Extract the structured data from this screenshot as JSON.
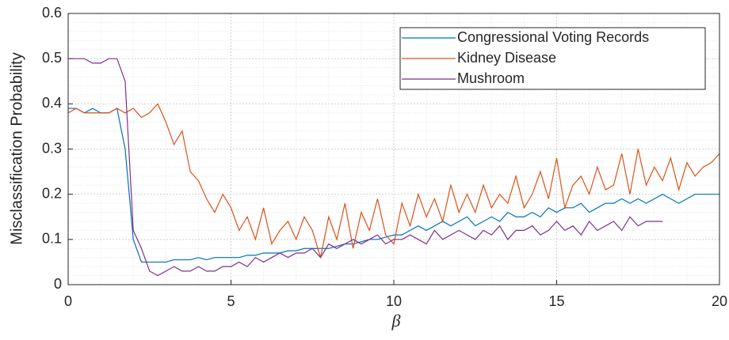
{
  "chart_data": {
    "type": "line",
    "x": [
      0,
      0.25,
      0.5,
      0.75,
      1,
      1.25,
      1.5,
      1.75,
      2,
      2.25,
      2.5,
      2.75,
      3,
      3.25,
      3.5,
      3.75,
      4,
      4.25,
      4.5,
      4.75,
      5,
      5.25,
      5.5,
      5.75,
      6,
      6.25,
      6.5,
      6.75,
      7,
      7.25,
      7.5,
      7.75,
      8,
      8.25,
      8.5,
      8.75,
      9,
      9.25,
      9.5,
      9.75,
      10,
      10.25,
      10.5,
      10.75,
      11,
      11.25,
      11.5,
      11.75,
      12,
      12.25,
      12.5,
      12.75,
      13,
      13.25,
      13.5,
      13.75,
      14,
      14.25,
      14.5,
      14.75,
      15,
      15.25,
      15.5,
      15.75,
      16,
      16.25,
      16.5,
      16.75,
      17,
      17.25,
      17.5,
      17.75,
      18,
      18.25,
      18.5,
      18.75,
      19,
      19.25,
      19.5,
      19.75,
      20
    ],
    "series": [
      {
        "name": "Congressional Voting Records",
        "color": "#0072bd",
        "values": [
          0.39,
          0.39,
          0.38,
          0.39,
          0.38,
          0.38,
          0.39,
          0.3,
          0.1,
          0.05,
          0.05,
          0.05,
          0.05,
          0.055,
          0.055,
          0.055,
          0.06,
          0.055,
          0.06,
          0.06,
          0.06,
          0.06,
          0.065,
          0.065,
          0.07,
          0.07,
          0.07,
          0.075,
          0.075,
          0.08,
          0.08,
          0.08,
          0.08,
          0.085,
          0.09,
          0.09,
          0.095,
          0.1,
          0.1,
          0.105,
          0.11,
          0.11,
          0.12,
          0.13,
          0.12,
          0.13,
          0.14,
          0.13,
          0.14,
          0.15,
          0.13,
          0.14,
          0.15,
          0.14,
          0.16,
          0.15,
          0.15,
          0.16,
          0.15,
          0.17,
          0.16,
          0.17,
          0.17,
          0.18,
          0.16,
          0.17,
          0.18,
          0.18,
          0.19,
          0.18,
          0.19,
          0.18,
          0.19,
          0.2,
          0.19,
          0.18,
          0.19,
          0.2,
          0.2,
          0.2,
          0.2
        ]
      },
      {
        "name": "Kidney Disease",
        "color": "#d95319",
        "values": [
          0.38,
          0.39,
          0.38,
          0.38,
          0.38,
          0.38,
          0.39,
          0.38,
          0.39,
          0.37,
          0.38,
          0.4,
          0.36,
          0.31,
          0.34,
          0.25,
          0.23,
          0.19,
          0.16,
          0.2,
          0.17,
          0.12,
          0.15,
          0.1,
          0.17,
          0.09,
          0.12,
          0.14,
          0.1,
          0.15,
          0.12,
          0.06,
          0.15,
          0.1,
          0.18,
          0.08,
          0.16,
          0.12,
          0.19,
          0.11,
          0.09,
          0.18,
          0.13,
          0.2,
          0.15,
          0.19,
          0.14,
          0.22,
          0.16,
          0.2,
          0.16,
          0.22,
          0.17,
          0.2,
          0.18,
          0.24,
          0.17,
          0.2,
          0.25,
          0.19,
          0.28,
          0.17,
          0.22,
          0.24,
          0.2,
          0.26,
          0.21,
          0.22,
          0.29,
          0.2,
          0.3,
          0.22,
          0.26,
          0.23,
          0.28,
          0.21,
          0.27,
          0.24,
          0.26,
          0.27,
          0.29
        ]
      },
      {
        "name": "Mushroom",
        "color": "#7e2f8e",
        "values": [
          0.5,
          0.5,
          0.5,
          0.49,
          0.49,
          0.5,
          0.5,
          0.45,
          0.12,
          0.08,
          0.03,
          0.02,
          0.03,
          0.04,
          0.03,
          0.03,
          0.04,
          0.03,
          0.03,
          0.04,
          0.04,
          0.05,
          0.04,
          0.06,
          0.05,
          0.06,
          0.07,
          0.06,
          0.07,
          0.07,
          0.08,
          0.06,
          0.09,
          0.08,
          0.09,
          0.1,
          0.09,
          0.1,
          0.11,
          0.09,
          0.1,
          0.1,
          0.11,
          0.1,
          0.09,
          0.12,
          0.1,
          0.11,
          0.12,
          0.11,
          0.1,
          0.12,
          0.11,
          0.13,
          0.1,
          0.12,
          0.12,
          0.13,
          0.11,
          0.12,
          0.14,
          0.12,
          0.13,
          0.11,
          0.14,
          0.12,
          0.13,
          0.14,
          0.12,
          0.15,
          0.13,
          0.14,
          0.14,
          0.14,
          null,
          null,
          null,
          null,
          null,
          null,
          null
        ]
      }
    ],
    "xlabel": "β",
    "ylabel": "Misclassification Probability",
    "xlim": [
      0,
      20
    ],
    "xticks": [
      0,
      5,
      10,
      15,
      20
    ],
    "ylim": [
      0,
      0.6
    ],
    "yticks": [
      0,
      0.1,
      0.2,
      0.3,
      0.4,
      0.5,
      0.6
    ],
    "grid": true,
    "minor_grid": true,
    "legend": "top-right"
  }
}
